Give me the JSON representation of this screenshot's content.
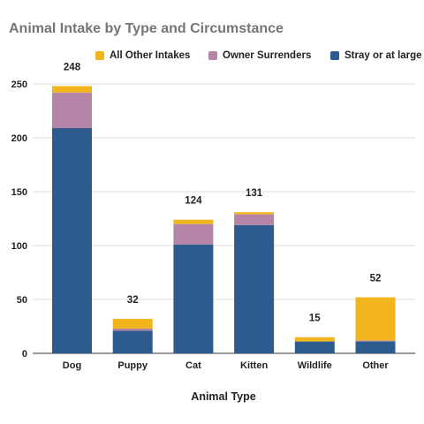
{
  "chart_data": {
    "type": "bar",
    "stacked": true,
    "title": "Animal Intake by Type and Circumstance",
    "xlabel": "Animal Type",
    "ylabel": "",
    "ylim": [
      0,
      250
    ],
    "yticks": [
      0,
      50,
      100,
      150,
      200,
      250
    ],
    "grid": true,
    "legend_position": "top",
    "categories": [
      "Dog",
      "Puppy",
      "Cat",
      "Kitten",
      "Wildlife",
      "Other"
    ],
    "series": [
      {
        "name": "Stray or at large",
        "color": "#2e5b8e",
        "values": [
          209,
          21,
          101,
          119,
          11,
          11
        ]
      },
      {
        "name": "Owner Surrenders",
        "color": "#b585a8",
        "values": [
          33,
          2,
          19,
          10,
          0,
          1
        ]
      },
      {
        "name": "All Other Intakes",
        "color": "#f2b51e",
        "values": [
          6,
          9,
          4,
          2,
          4,
          40
        ]
      }
    ],
    "totals": [
      248,
      32,
      124,
      131,
      15,
      52
    ],
    "legend_order": [
      "All Other Intakes",
      "Owner Surrenders",
      "Stray or at large"
    ]
  }
}
